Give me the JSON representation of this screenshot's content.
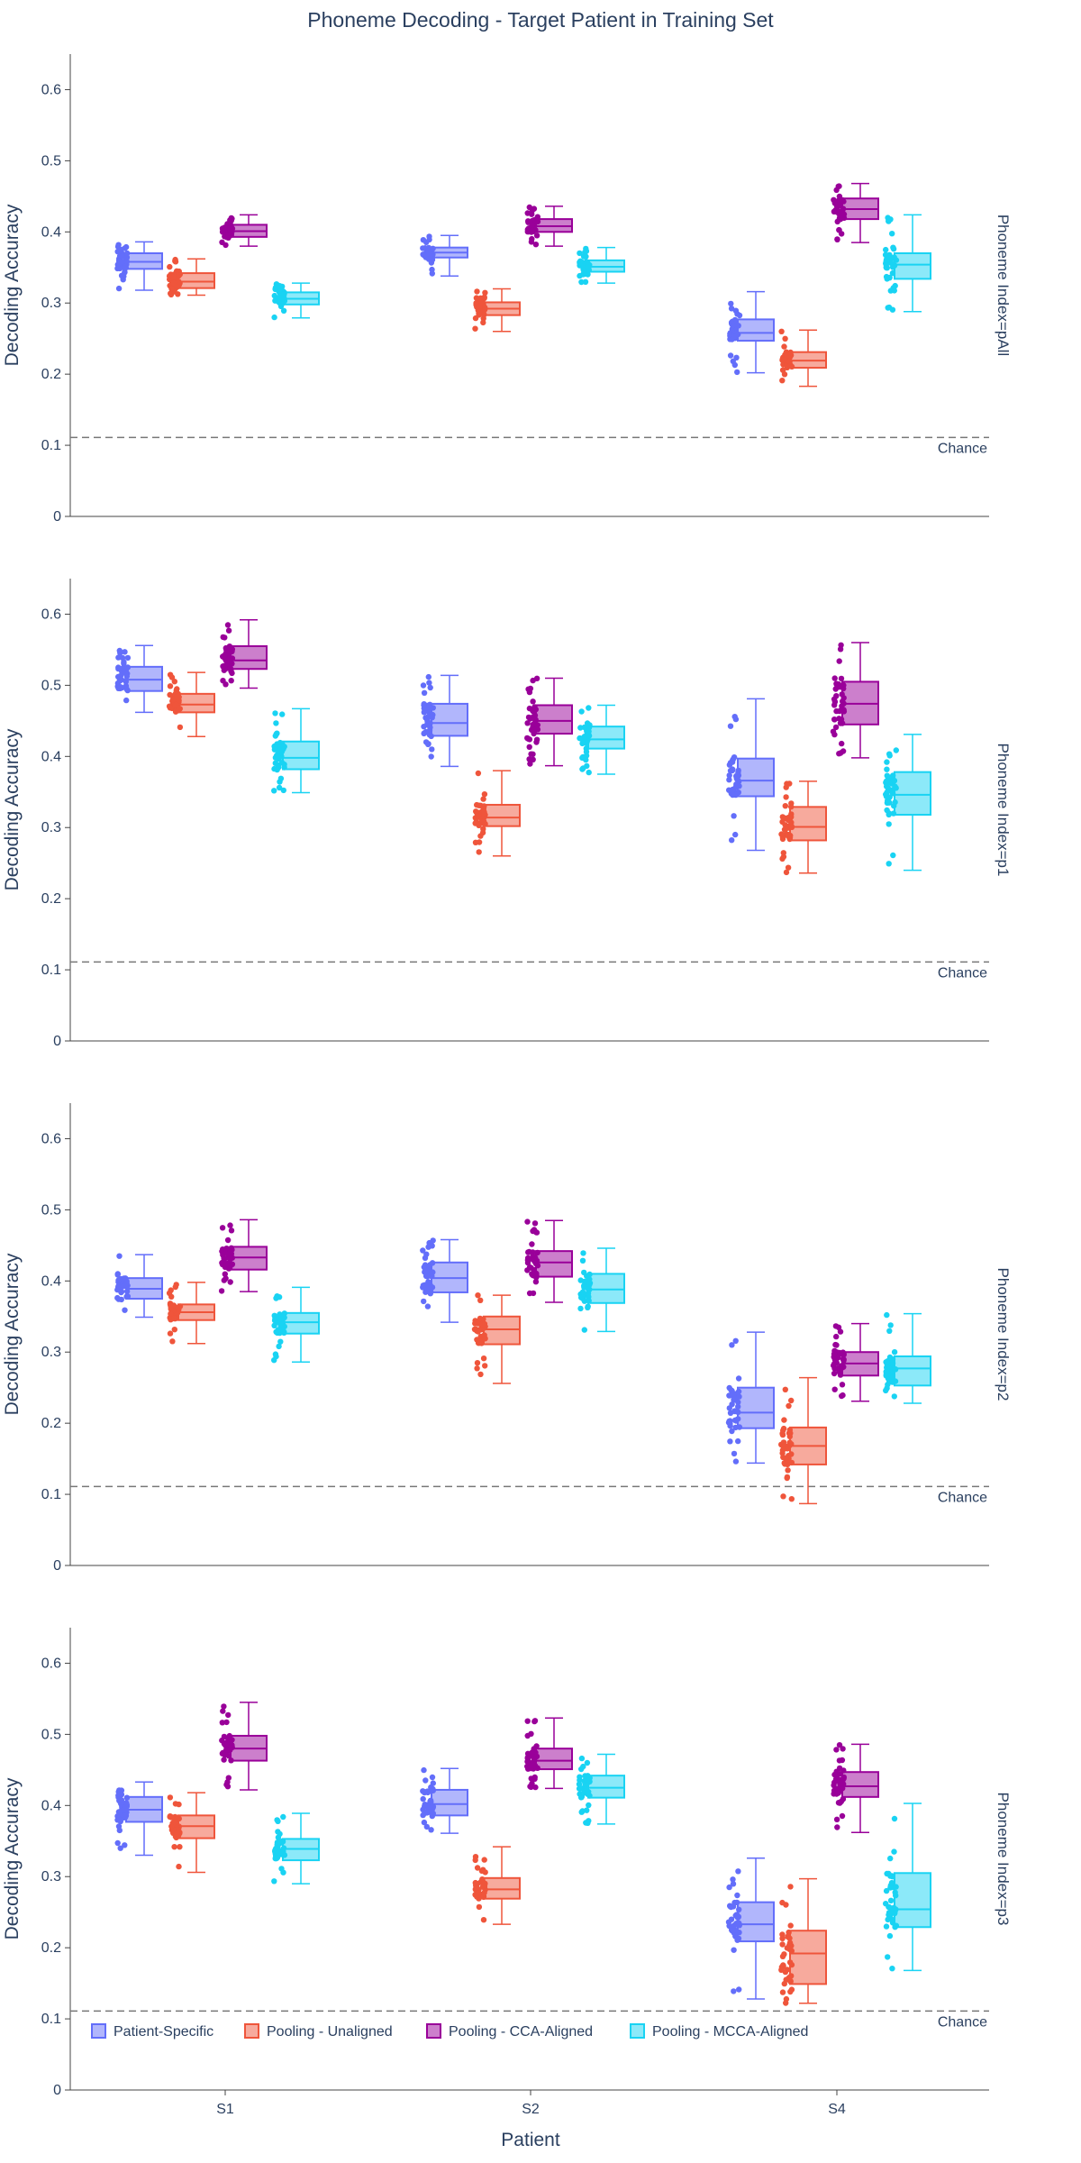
{
  "chart_data": {
    "type": "box",
    "title": "Phoneme Decoding - Target Patient in Training Set",
    "xlabel": "Patient",
    "ylabel": "Decoding Accuracy",
    "categories": [
      "S1",
      "S2",
      "S4"
    ],
    "ylim": [
      0,
      0.65
    ],
    "yticks": [
      0,
      0.1,
      0.2,
      0.3,
      0.4,
      0.5,
      0.6
    ],
    "ytick_labels": [
      "0",
      "0.1",
      "0.2",
      "0.3",
      "0.4",
      "0.5",
      "0.6"
    ],
    "grid": false,
    "legend_position": "bottom-left, inside the last panel",
    "chance": {
      "value": 0.111,
      "label": "Chance"
    },
    "series": [
      {
        "name": "Patient-Specific",
        "color": "#636efa"
      },
      {
        "name": "Pooling - Unaligned",
        "color": "#ef553b"
      },
      {
        "name": "Pooling - CCA-Aligned",
        "color": "#990099"
      },
      {
        "name": "Pooling - MCCA-Aligned",
        "color": "#19d3f3"
      }
    ],
    "panels": [
      {
        "label": "Phoneme Index=pAll",
        "boxes": [
          [
            {
              "min": 0.318,
              "q1": 0.348,
              "median": 0.358,
              "q3": 0.37,
              "max": 0.386
            },
            {
              "min": 0.311,
              "q1": 0.321,
              "median": 0.33,
              "q3": 0.342,
              "max": 0.362
            },
            {
              "min": 0.38,
              "q1": 0.393,
              "median": 0.401,
              "q3": 0.41,
              "max": 0.424
            },
            {
              "min": 0.279,
              "q1": 0.298,
              "median": 0.306,
              "q3": 0.315,
              "max": 0.328
            }
          ],
          [
            {
              "min": 0.338,
              "q1": 0.364,
              "median": 0.371,
              "q3": 0.378,
              "max": 0.395
            },
            {
              "min": 0.26,
              "q1": 0.283,
              "median": 0.292,
              "q3": 0.301,
              "max": 0.32
            },
            {
              "min": 0.38,
              "q1": 0.4,
              "median": 0.408,
              "q3": 0.418,
              "max": 0.436
            },
            {
              "min": 0.328,
              "q1": 0.344,
              "median": 0.351,
              "q3": 0.36,
              "max": 0.378
            }
          ],
          [
            {
              "min": 0.202,
              "q1": 0.247,
              "median": 0.258,
              "q3": 0.277,
              "max": 0.316
            },
            {
              "min": 0.183,
              "q1": 0.209,
              "median": 0.219,
              "q3": 0.231,
              "max": 0.262
            },
            {
              "min": 0.385,
              "q1": 0.418,
              "median": 0.432,
              "q3": 0.447,
              "max": 0.468
            },
            {
              "min": 0.288,
              "q1": 0.334,
              "median": 0.354,
              "q3": 0.37,
              "max": 0.424
            }
          ]
        ]
      },
      {
        "label": "Phoneme Index=p1",
        "boxes": [
          [
            {
              "min": 0.462,
              "q1": 0.492,
              "median": 0.508,
              "q3": 0.526,
              "max": 0.556
            },
            {
              "min": 0.428,
              "q1": 0.462,
              "median": 0.473,
              "q3": 0.488,
              "max": 0.518
            },
            {
              "min": 0.496,
              "q1": 0.523,
              "median": 0.535,
              "q3": 0.555,
              "max": 0.592
            },
            {
              "min": 0.349,
              "q1": 0.382,
              "median": 0.398,
              "q3": 0.421,
              "max": 0.467
            }
          ],
          [
            {
              "min": 0.386,
              "q1": 0.429,
              "median": 0.447,
              "q3": 0.474,
              "max": 0.514
            },
            {
              "min": 0.26,
              "q1": 0.302,
              "median": 0.314,
              "q3": 0.332,
              "max": 0.38
            },
            {
              "min": 0.387,
              "q1": 0.432,
              "median": 0.45,
              "q3": 0.472,
              "max": 0.51
            },
            {
              "min": 0.375,
              "q1": 0.411,
              "median": 0.424,
              "q3": 0.442,
              "max": 0.472
            }
          ],
          [
            {
              "min": 0.268,
              "q1": 0.344,
              "median": 0.366,
              "q3": 0.397,
              "max": 0.481
            },
            {
              "min": 0.236,
              "q1": 0.282,
              "median": 0.301,
              "q3": 0.329,
              "max": 0.365
            },
            {
              "min": 0.398,
              "q1": 0.445,
              "median": 0.474,
              "q3": 0.505,
              "max": 0.56
            },
            {
              "min": 0.24,
              "q1": 0.318,
              "median": 0.346,
              "q3": 0.378,
              "max": 0.431
            }
          ]
        ]
      },
      {
        "label": "Phoneme Index=p2",
        "boxes": [
          [
            {
              "min": 0.349,
              "q1": 0.375,
              "median": 0.389,
              "q3": 0.404,
              "max": 0.437
            },
            {
              "min": 0.312,
              "q1": 0.345,
              "median": 0.356,
              "q3": 0.367,
              "max": 0.398
            },
            {
              "min": 0.385,
              "q1": 0.416,
              "median": 0.433,
              "q3": 0.448,
              "max": 0.486
            },
            {
              "min": 0.286,
              "q1": 0.326,
              "median": 0.342,
              "q3": 0.355,
              "max": 0.391
            }
          ],
          [
            {
              "min": 0.342,
              "q1": 0.384,
              "median": 0.404,
              "q3": 0.426,
              "max": 0.458
            },
            {
              "min": 0.256,
              "q1": 0.311,
              "median": 0.332,
              "q3": 0.35,
              "max": 0.38
            },
            {
              "min": 0.37,
              "q1": 0.406,
              "median": 0.426,
              "q3": 0.442,
              "max": 0.485
            },
            {
              "min": 0.329,
              "q1": 0.369,
              "median": 0.388,
              "q3": 0.41,
              "max": 0.446
            }
          ],
          [
            {
              "min": 0.144,
              "q1": 0.193,
              "median": 0.215,
              "q3": 0.25,
              "max": 0.328
            },
            {
              "min": 0.087,
              "q1": 0.142,
              "median": 0.168,
              "q3": 0.194,
              "max": 0.264
            },
            {
              "min": 0.231,
              "q1": 0.267,
              "median": 0.284,
              "q3": 0.3,
              "max": 0.34
            },
            {
              "min": 0.228,
              "q1": 0.253,
              "median": 0.277,
              "q3": 0.294,
              "max": 0.354
            }
          ]
        ]
      },
      {
        "label": "Phoneme Index=p3",
        "boxes": [
          [
            {
              "min": 0.33,
              "q1": 0.377,
              "median": 0.394,
              "q3": 0.412,
              "max": 0.433
            },
            {
              "min": 0.306,
              "q1": 0.354,
              "median": 0.371,
              "q3": 0.386,
              "max": 0.418
            },
            {
              "min": 0.422,
              "q1": 0.463,
              "median": 0.48,
              "q3": 0.498,
              "max": 0.545
            },
            {
              "min": 0.29,
              "q1": 0.323,
              "median": 0.339,
              "q3": 0.353,
              "max": 0.389
            }
          ],
          [
            {
              "min": 0.361,
              "q1": 0.386,
              "median": 0.402,
              "q3": 0.422,
              "max": 0.452
            },
            {
              "min": 0.233,
              "q1": 0.269,
              "median": 0.282,
              "q3": 0.298,
              "max": 0.342
            },
            {
              "min": 0.424,
              "q1": 0.451,
              "median": 0.463,
              "q3": 0.48,
              "max": 0.523
            },
            {
              "min": 0.374,
              "q1": 0.411,
              "median": 0.425,
              "q3": 0.442,
              "max": 0.472
            }
          ],
          [
            {
              "min": 0.128,
              "q1": 0.209,
              "median": 0.233,
              "q3": 0.264,
              "max": 0.326
            },
            {
              "min": 0.122,
              "q1": 0.149,
              "median": 0.192,
              "q3": 0.224,
              "max": 0.297
            },
            {
              "min": 0.362,
              "q1": 0.412,
              "median": 0.427,
              "q3": 0.447,
              "max": 0.486
            },
            {
              "min": 0.168,
              "q1": 0.229,
              "median": 0.254,
              "q3": 0.305,
              "max": 0.403
            }
          ]
        ]
      }
    ]
  }
}
